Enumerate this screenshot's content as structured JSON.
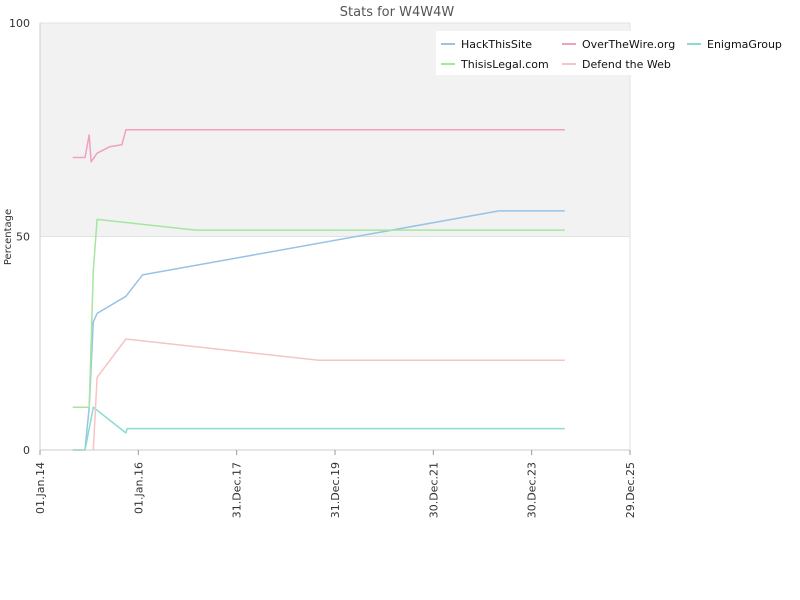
{
  "chart_data": {
    "type": "line",
    "title": "Stats for W4W4W",
    "ylabel": "Percentage",
    "xlabel": "",
    "ylim": [
      0,
      100
    ],
    "xlim": [
      "2014-01-01",
      "2025-12-29"
    ],
    "y_ticks": [
      0,
      50,
      100
    ],
    "y_tick_labels": [
      "0",
      "50",
      "100"
    ],
    "x_ticks": [
      "2014-01-01",
      "2016-01-01",
      "2017-12-31",
      "2019-12-31",
      "2021-12-30",
      "2023-12-30",
      "2025-12-29"
    ],
    "x_tick_labels": [
      "01.Jan.14",
      "01.Jan.16",
      "31.Dec.17",
      "31.Dec.19",
      "30.Dec.21",
      "30.Dec.23",
      "29.Dec.25"
    ],
    "bands": [
      {
        "from": 50,
        "to": 100,
        "color": "#f2f2f2"
      },
      {
        "from": 0,
        "to": 50,
        "color": "#ffffff"
      }
    ],
    "grid": true,
    "legend_position": "top-right",
    "series": [
      {
        "name": "HackThisSite",
        "color": "#99c2e6",
        "points": [
          [
            "2014-09-01",
            0
          ],
          [
            "2014-12-01",
            0
          ],
          [
            "2015-01-01",
            10
          ],
          [
            "2015-02-01",
            30
          ],
          [
            "2015-03-01",
            32
          ],
          [
            "2015-10-01",
            36
          ],
          [
            "2016-02-01",
            41
          ],
          [
            "2023-05-01",
            56
          ],
          [
            "2024-09-01",
            56
          ]
        ]
      },
      {
        "name": "OverTheWire.org",
        "color": "#f0a0c0",
        "points": [
          [
            "2014-09-01",
            68.5
          ],
          [
            "2014-12-01",
            68.5
          ],
          [
            "2015-01-01",
            73.8
          ],
          [
            "2015-01-15",
            67.5
          ],
          [
            "2015-03-01",
            69.5
          ],
          [
            "2015-06-01",
            71
          ],
          [
            "2015-09-01",
            71.5
          ],
          [
            "2015-10-01",
            75
          ],
          [
            "2024-09-01",
            75
          ]
        ]
      },
      {
        "name": "EnigmaGroup",
        "color": "#88dcd0",
        "points": [
          [
            "2014-09-01",
            0
          ],
          [
            "2014-12-01",
            0
          ],
          [
            "2015-01-01",
            5
          ],
          [
            "2015-02-01",
            10
          ],
          [
            "2015-10-01",
            4
          ],
          [
            "2015-10-10",
            5
          ],
          [
            "2024-09-01",
            5
          ]
        ]
      },
      {
        "name": "ThisisLegal.com",
        "color": "#a4e6a0",
        "points": [
          [
            "2014-09-01",
            10
          ],
          [
            "2015-01-01",
            10
          ],
          [
            "2015-02-01",
            42
          ],
          [
            "2015-03-01",
            54
          ],
          [
            "2017-03-01",
            51.5
          ],
          [
            "2024-09-01",
            51.5
          ]
        ]
      },
      {
        "name": "Defend the Web",
        "color": "#f5c4c4",
        "points": [
          [
            "2015-02-01",
            0
          ],
          [
            "2015-03-01",
            17
          ],
          [
            "2015-10-01",
            26
          ],
          [
            "2019-09-01",
            21
          ],
          [
            "2024-09-01",
            21
          ]
        ]
      }
    ]
  }
}
